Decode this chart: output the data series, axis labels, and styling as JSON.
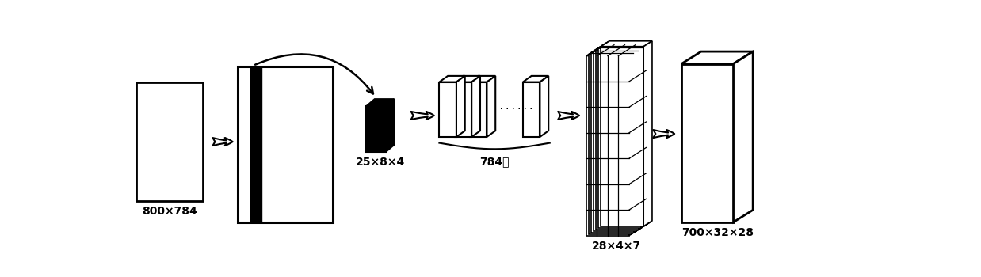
{
  "bg_color": "#ffffff",
  "label_800x784": "800×784",
  "label_25x8x4": "25×8×4",
  "label_784": "784个",
  "label_28x4x7": "28×4×7",
  "label_700x32x28": "700×32×28",
  "font_size_label": 10,
  "line_color": "#000000"
}
